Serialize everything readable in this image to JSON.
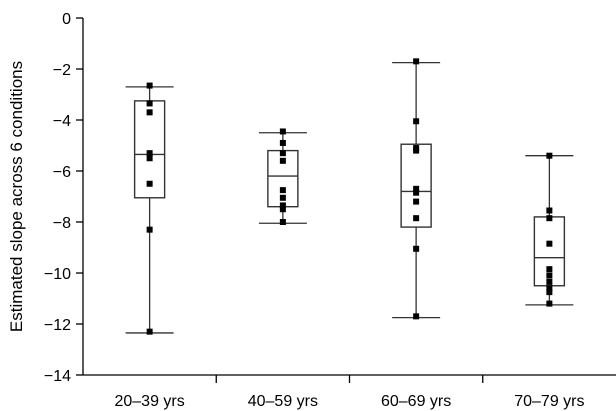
{
  "chart_data": {
    "type": "box",
    "title": "",
    "xlabel": "",
    "ylabel": "Estimated slope across 6 conditions",
    "ylim": [
      -14,
      0
    ],
    "yticks": [
      0,
      -2,
      -4,
      -6,
      -8,
      -10,
      -12,
      -14
    ],
    "ytick_labels": [
      "0",
      "−2",
      "−4",
      "−6",
      "−8",
      "−10",
      "−12",
      "−14"
    ],
    "categories": [
      "20–39 yrs",
      "40–59 yrs",
      "60–69 yrs",
      "70–79 yrs"
    ],
    "boxes": [
      {
        "min": -12.35,
        "q1": -7.05,
        "median": -5.35,
        "q3": -3.25,
        "max": -2.7,
        "points": [
          -2.65,
          -3.35,
          -3.7,
          -5.3,
          -5.5,
          -6.5,
          -8.3,
          -12.3
        ]
      },
      {
        "min": -8.05,
        "q1": -7.4,
        "median": -6.2,
        "q3": -5.2,
        "max": -4.5,
        "points": [
          -4.45,
          -4.9,
          -5.3,
          -5.6,
          -6.75,
          -7.05,
          -7.35,
          -7.5,
          -8.0
        ]
      },
      {
        "min": -11.75,
        "q1": -8.2,
        "median": -6.8,
        "q3": -4.95,
        "max": -1.75,
        "points": [
          -1.7,
          -4.05,
          -5.1,
          -5.2,
          -6.7,
          -6.85,
          -7.2,
          -7.85,
          -9.05,
          -11.7
        ]
      },
      {
        "min": -11.25,
        "q1": -10.5,
        "median": -9.4,
        "q3": -7.8,
        "max": -5.4,
        "points": [
          -5.4,
          -7.55,
          -7.85,
          -8.85,
          -9.85,
          -10.1,
          -10.35,
          -10.6,
          -10.75,
          -11.2
        ]
      }
    ]
  }
}
